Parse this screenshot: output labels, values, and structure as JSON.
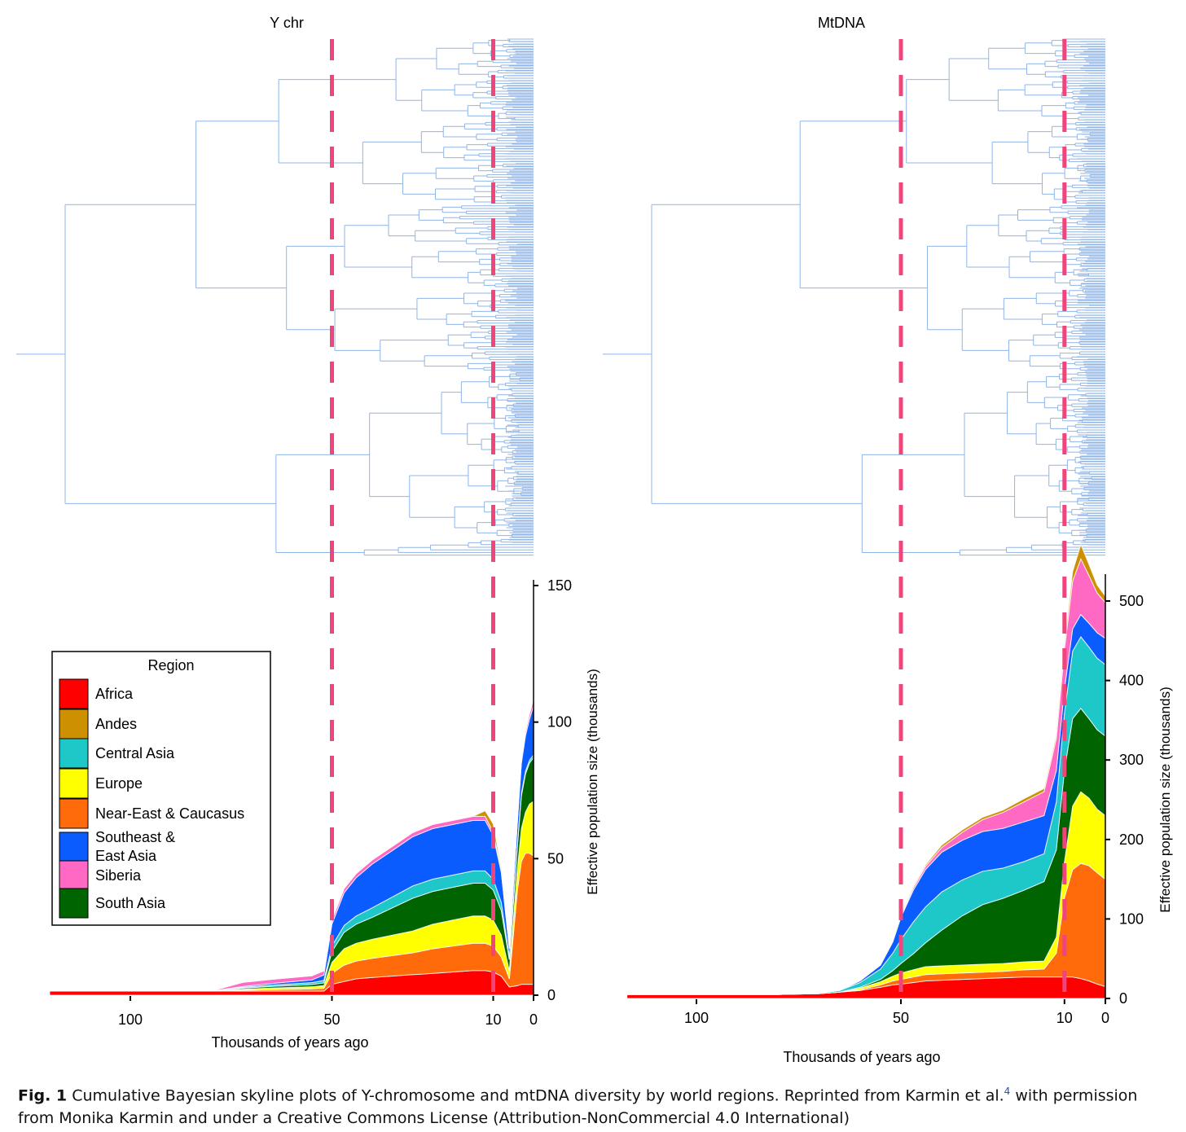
{
  "chart_data": [
    {
      "type": "area",
      "panel": "Y chr",
      "title": "Y chr",
      "xlabel": "Thousands of years ago",
      "ylabel": "Effective population size (thousands)",
      "x_ticks": [
        100,
        50,
        10,
        0
      ],
      "y_ticks": [
        0,
        50,
        100,
        150
      ],
      "xlim": [
        120,
        0
      ],
      "ylim": [
        0,
        150
      ],
      "reference_lines_kya": [
        50,
        10
      ],
      "legend": {
        "title": "Region",
        "placement": "left",
        "entries": [
          "Africa",
          "Andes",
          "Central Asia",
          "Europe",
          "Near-East & Caucasus",
          "Southeast &\nEast Asia",
          "Siberia",
          "South Asia"
        ]
      },
      "x": [
        120,
        100,
        80,
        72,
        65,
        55,
        52,
        50,
        47,
        44,
        40,
        35,
        30,
        25,
        20,
        15,
        12,
        10,
        8,
        6,
        4,
        3,
        2,
        1,
        0
      ],
      "series": [
        {
          "name": "Africa",
          "values": [
            1.5,
            1.5,
            1.5,
            1.5,
            1.5,
            1.5,
            1.5,
            4,
            5,
            6,
            6.5,
            7,
            7.5,
            8,
            8.5,
            9,
            9,
            8.5,
            7,
            3,
            3.5,
            4,
            4,
            4,
            4
          ]
        },
        {
          "name": "Near-East & Caucasus",
          "values": [
            0,
            0,
            0,
            0.3,
            0.5,
            0.8,
            1,
            4,
            6,
            6.5,
            7,
            7.5,
            8,
            9,
            9.5,
            10,
            10,
            9.5,
            7,
            3,
            35,
            45,
            48,
            48,
            47
          ]
        },
        {
          "name": "Europe",
          "values": [
            0,
            0,
            0,
            0.4,
            0.6,
            0.8,
            1,
            4,
            6,
            6.5,
            7,
            7.5,
            8,
            9,
            9.5,
            10,
            10,
            9.5,
            8,
            3,
            8,
            12,
            15,
            18,
            20
          ]
        },
        {
          "name": "South Asia",
          "values": [
            0,
            0,
            0,
            0.4,
            0.6,
            0.8,
            1,
            4,
            6,
            7,
            8,
            10,
            12,
            12,
            12,
            12,
            12,
            11,
            9,
            4,
            8,
            12,
            14,
            15,
            16
          ]
        },
        {
          "name": "Central Asia",
          "values": [
            0,
            0,
            0,
            0.3,
            0.5,
            0.7,
            0.9,
            2,
            2.5,
            3,
            3.5,
            4,
            4.5,
            4.5,
            4.5,
            4.5,
            4.5,
            4,
            3,
            1,
            1,
            1,
            1,
            1,
            1
          ]
        },
        {
          "name": "Southeast &\nEast Asia",
          "values": [
            0,
            0,
            0,
            0.3,
            0.6,
            1,
            2,
            8,
            12,
            14,
            16,
            17,
            18,
            18.5,
            18.5,
            18.5,
            18.5,
            16,
            11,
            3,
            8,
            11,
            13,
            15,
            18
          ]
        },
        {
          "name": "Siberia",
          "values": [
            0,
            0,
            0,
            1.5,
            1.5,
            1.5,
            1.5,
            1.5,
            1.5,
            1.5,
            1.5,
            1.5,
            1.5,
            1.5,
            1.5,
            1.5,
            1.5,
            1.2,
            0.8,
            0.3,
            0.5,
            1,
            1.5,
            2,
            2.5
          ]
        },
        {
          "name": "Andes",
          "values": [
            0,
            0,
            0,
            0,
            0,
            0,
            0,
            0,
            0,
            0,
            0,
            0,
            0,
            0,
            0,
            0,
            2,
            3,
            1,
            0,
            0,
            0,
            0,
            0,
            0
          ]
        }
      ]
    },
    {
      "type": "area",
      "panel": "MtDNA",
      "title": "MtDNA",
      "xlabel": "Thousands of years ago",
      "ylabel": "Effective population size (thousands)",
      "x_ticks": [
        100,
        50,
        10,
        0
      ],
      "y_ticks": [
        0,
        100,
        200,
        300,
        400,
        500
      ],
      "xlim": [
        117,
        0
      ],
      "ylim": [
        0,
        500
      ],
      "reference_lines_kya": [
        50,
        10
      ],
      "x": [
        117,
        100,
        80,
        70,
        65,
        60,
        55,
        52,
        50,
        47,
        44,
        40,
        35,
        30,
        25,
        20,
        15,
        12,
        10,
        8,
        6,
        4,
        2,
        0
      ],
      "series": [
        {
          "name": "Africa",
          "values": [
            5,
            5,
            5,
            6,
            8,
            10,
            14,
            17,
            18,
            20,
            22,
            23,
            24,
            25,
            26,
            27,
            27,
            27,
            27,
            27,
            25,
            22,
            18,
            15
          ]
        },
        {
          "name": "Near-East & Caucasus",
          "values": [
            0,
            0,
            0,
            0,
            0,
            1,
            3,
            5,
            6,
            7,
            8,
            8,
            8,
            8,
            8,
            9,
            10,
            30,
            100,
            135,
            145,
            145,
            140,
            135
          ]
        },
        {
          "name": "Europe",
          "values": [
            0,
            0,
            0,
            0,
            0,
            2,
            4,
            6,
            8,
            9,
            10,
            10,
            10,
            10,
            10,
            10,
            10,
            20,
            45,
            80,
            90,
            85,
            80,
            80
          ]
        },
        {
          "name": "South Asia",
          "values": [
            0,
            0,
            0,
            0,
            0,
            1,
            3,
            7,
            12,
            20,
            30,
            45,
            62,
            75,
            82,
            90,
            100,
            110,
            115,
            110,
            105,
            100,
            100,
            100
          ]
        },
        {
          "name": "Central Asia",
          "values": [
            0,
            0,
            0,
            1,
            2,
            6,
            13,
            22,
            30,
            40,
            45,
            48,
            45,
            42,
            38,
            36,
            35,
            60,
            72,
            85,
            90,
            90,
            90,
            90
          ]
        },
        {
          "name": "Southeast &\nEast Asia",
          "values": [
            0,
            0,
            0,
            0,
            0,
            2,
            5,
            14,
            28,
            40,
            47,
            50,
            50,
            50,
            50,
            50,
            48,
            40,
            30,
            28,
            28,
            30,
            32,
            33
          ]
        },
        {
          "name": "Siberia",
          "values": [
            0,
            0,
            0,
            0,
            0,
            0,
            0,
            1,
            2,
            3,
            4,
            6,
            10,
            15,
            20,
            25,
            30,
            40,
            50,
            60,
            70,
            60,
            50,
            45
          ]
        },
        {
          "name": "Andes",
          "values": [
            0,
            0,
            0,
            0,
            0,
            0,
            0,
            1,
            1,
            2,
            2,
            3,
            3,
            3,
            3,
            4,
            4,
            5,
            8,
            12,
            18,
            14,
            10,
            8
          ]
        }
      ]
    }
  ],
  "colors": {
    "Africa": "#ff0000",
    "Andes": "#cc9000",
    "Central Asia": "#1ec8c8",
    "Europe": "#ffff00",
    "Near-East & Caucasus": "#ff6a0a",
    "Southeast &\nEast Asia": "#0a5cff",
    "Siberia": "#ff69c4",
    "South Asia": "#006400",
    "tree": "#8fb5e6",
    "reference_line": "#f0457a"
  },
  "caption": {
    "lead": "Fig. 1",
    "text": " Cumulative Bayesian skyline plots of Y-chromosome and mtDNA diversity by world regions. Reprinted from Karmin et al.",
    "ref": "4",
    "text2": " with permission from Monika Karmin and under a Creative Commons License (Attribution-NonCommercial 4.0 International)"
  }
}
